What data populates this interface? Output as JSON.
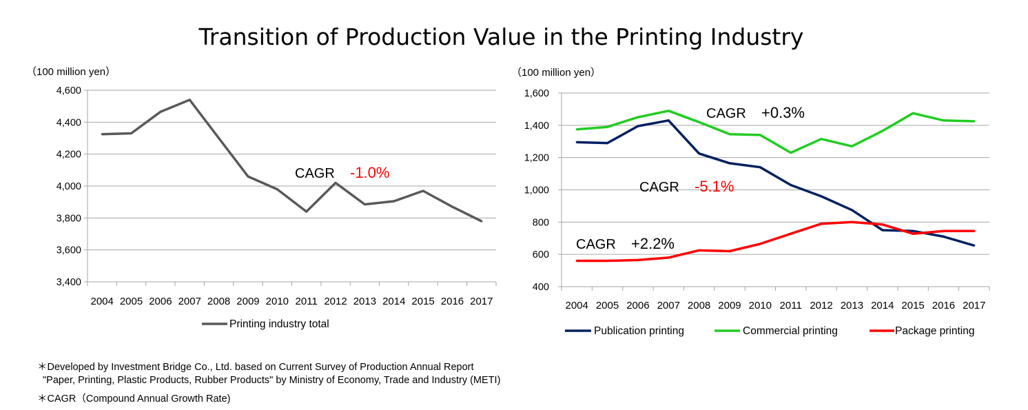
{
  "title": "Transition of Production Value in the Printing Industry",
  "footnotes": [
    "＊Developed  by Investment Bridge Co., Ltd. based on Current Survey of Production Annual Report",
    "\"Paper, Printing, Plastic Products, Rubber Products\" by Ministry of Economy, Trade and Industry (METI)",
    "＊CAGR（Compound Annual Growth Rate)"
  ],
  "chart_data": [
    {
      "type": "line",
      "ylabel": "（100 million yen）",
      "ylim": [
        3400,
        4600
      ],
      "yticks": [
        "3,400",
        "3,600",
        "3,800",
        "4,000",
        "4,200",
        "4,400",
        "4,600"
      ],
      "categories": [
        "2004",
        "2005",
        "2006",
        "2007",
        "2008",
        "2009",
        "2010",
        "2011",
        "2012",
        "2013",
        "2014",
        "2015",
        "2016",
        "2017"
      ],
      "series": [
        {
          "name": "Printing industry total",
          "color": "#595959",
          "values": [
            4325,
            4330,
            4465,
            4540,
            4300,
            4060,
            3980,
            3840,
            4020,
            3885,
            3905,
            3970,
            3870,
            3780
          ]
        }
      ],
      "annotations": [
        {
          "label": "CAGR",
          "value": "-1.0%",
          "value_color": "#ff0000"
        }
      ],
      "grid": true,
      "legend": "bottom"
    },
    {
      "type": "line",
      "ylabel": "（100 million yen）",
      "ylim": [
        400,
        1600
      ],
      "yticks": [
        "400",
        "600",
        "800",
        "1,000",
        "1,200",
        "1,400",
        "1,600"
      ],
      "categories": [
        "2004",
        "2005",
        "2006",
        "2007",
        "2008",
        "2009",
        "2010",
        "2011",
        "2012",
        "2013",
        "2014",
        "2015",
        "2016",
        "2017"
      ],
      "series": [
        {
          "name": "Publication printing",
          "color": "#002060",
          "values": [
            1295,
            1290,
            1395,
            1430,
            1225,
            1165,
            1140,
            1030,
            960,
            875,
            750,
            745,
            710,
            655
          ]
        },
        {
          "name": "Commercial printing",
          "color": "#22cc22",
          "values": [
            1375,
            1390,
            1450,
            1490,
            1420,
            1345,
            1340,
            1230,
            1315,
            1270,
            1365,
            1475,
            1430,
            1425
          ]
        },
        {
          "name": "Package  printing",
          "color": "#ff0000",
          "values": [
            560,
            560,
            565,
            580,
            625,
            620,
            665,
            728,
            790,
            800,
            785,
            728,
            745,
            745
          ]
        }
      ],
      "annotations": [
        {
          "label": "CAGR",
          "value": "+0.3%",
          "value_color": "#000000"
        },
        {
          "label": "CAGR",
          "value": "-5.1%",
          "value_color": "#ff0000"
        },
        {
          "label": "CAGR",
          "value": "+2.2%",
          "value_color": "#000000"
        }
      ],
      "grid": true,
      "legend": "bottom"
    }
  ]
}
